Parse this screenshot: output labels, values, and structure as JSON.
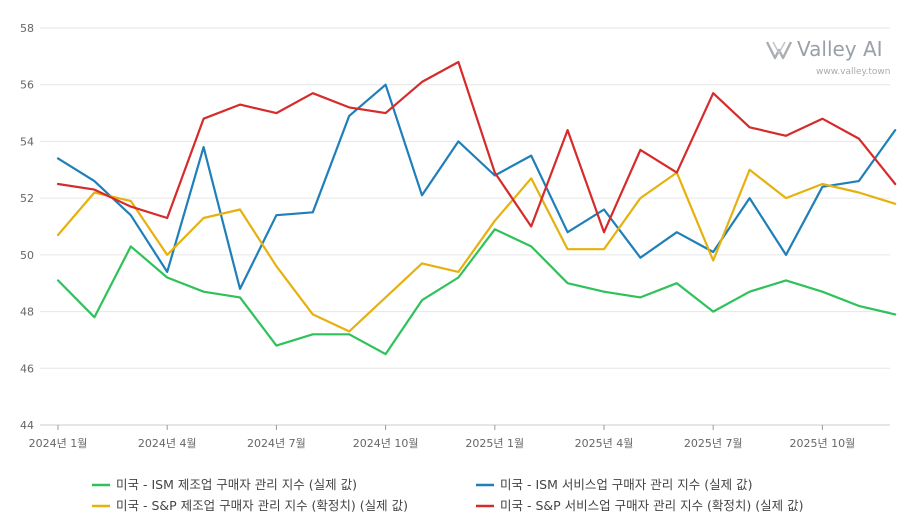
{
  "watermark": {
    "brand": "Valley AI",
    "url": "www.valley.town"
  },
  "chart_data": {
    "type": "line",
    "title": "",
    "xlabel": "",
    "ylabel": "",
    "ylim": [
      44,
      58
    ],
    "yticks": [
      44,
      46,
      48,
      50,
      52,
      54,
      56,
      58
    ],
    "grid": true,
    "legend_position": "bottom",
    "x": [
      "2024-01",
      "2024-02",
      "2024-03",
      "2024-04",
      "2024-05",
      "2024-06",
      "2024-07",
      "2024-08",
      "2024-09",
      "2024-10",
      "2024-11",
      "2024-12",
      "2025-01",
      "2025-02",
      "2025-03",
      "2025-04",
      "2025-05",
      "2025-06",
      "2025-07",
      "2025-08",
      "2025-09",
      "2025-10",
      "2025-11",
      "2025-12"
    ],
    "xtick_labels": [
      {
        "index": 0,
        "label": "2024년 1월"
      },
      {
        "index": 3,
        "label": "2024년 4월"
      },
      {
        "index": 6,
        "label": "2024년 7월"
      },
      {
        "index": 9,
        "label": "2024년 10월"
      },
      {
        "index": 12,
        "label": "2025년 1월"
      },
      {
        "index": 15,
        "label": "2025년 4월"
      },
      {
        "index": 18,
        "label": "2025년 7월"
      },
      {
        "index": 21,
        "label": "2025년 10월"
      }
    ],
    "series": [
      {
        "name": "미국 - ISM 제조업 구매자 관리 지수 (실제 값)",
        "color": "#2fc25b",
        "values": [
          49.1,
          47.8,
          50.3,
          49.2,
          48.7,
          48.5,
          46.8,
          47.2,
          47.2,
          46.5,
          48.4,
          49.2,
          50.9,
          50.3,
          49.0,
          48.7,
          48.5,
          49.0,
          48.0,
          48.7,
          49.1,
          48.7,
          48.2,
          47.9
        ]
      },
      {
        "name": "미국 - ISM 서비스업 구매자 관리 지수 (실제 값)",
        "color": "#1f7fb8",
        "values": [
          53.4,
          52.6,
          51.4,
          49.4,
          53.8,
          48.8,
          51.4,
          51.5,
          54.9,
          56.0,
          52.1,
          54.0,
          52.8,
          53.5,
          50.8,
          51.6,
          49.9,
          50.8,
          50.1,
          52.0,
          50.0,
          52.4,
          52.6,
          54.4
        ]
      },
      {
        "name": "미국 - S&P 제조업 구매자 관리 지수 (확정치) (실제 값)",
        "color": "#e6b10f",
        "values": [
          50.7,
          52.2,
          51.9,
          50.0,
          51.3,
          51.6,
          49.6,
          47.9,
          47.3,
          48.5,
          49.7,
          49.4,
          51.2,
          52.7,
          50.2,
          50.2,
          52.0,
          52.9,
          49.8,
          53.0,
          52.0,
          52.5,
          52.2,
          51.8
        ]
      },
      {
        "name": "미국 - S&P 서비스업 구매자 관리 지수 (확정치) (실제 값)",
        "color": "#d62b2b",
        "values": [
          52.5,
          52.3,
          51.7,
          51.3,
          54.8,
          55.3,
          55.0,
          55.7,
          55.2,
          55.0,
          56.1,
          56.8,
          52.9,
          51.0,
          54.4,
          50.8,
          53.7,
          52.9,
          55.7,
          54.5,
          54.2,
          54.8,
          54.1,
          52.5
        ]
      }
    ]
  }
}
